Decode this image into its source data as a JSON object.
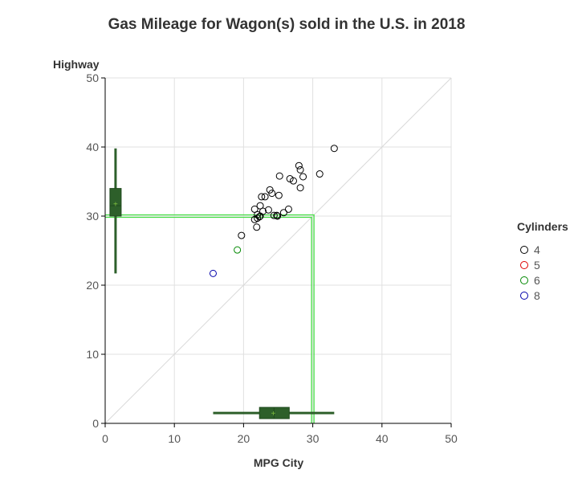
{
  "chart_data": {
    "type": "scatter",
    "title": "Gas Mileage for Wagon(s) sold in the U.S. in 2018",
    "xlabel": "MPG City",
    "ylabel": "Highway",
    "xlim": [
      0,
      50
    ],
    "ylim": [
      0,
      50
    ],
    "xticks": [
      0,
      10,
      20,
      30,
      40,
      50
    ],
    "yticks": [
      0,
      10,
      20,
      30,
      40,
      50
    ],
    "grid": true,
    "reference_line": {
      "from": [
        0,
        0
      ],
      "to": [
        50,
        50
      ],
      "color": "#d9d9d9"
    },
    "mean_lines": {
      "x": 30,
      "y": 30,
      "color": "#44dd44"
    },
    "legend": {
      "title": "Cylinders",
      "position": "right",
      "entries": [
        {
          "label": "4",
          "color": "#000000"
        },
        {
          "label": "5",
          "color": "#dd0000"
        },
        {
          "label": "6",
          "color": "#008800"
        },
        {
          "label": "8",
          "color": "#0000aa"
        }
      ]
    },
    "series": [
      {
        "name": "4",
        "color": "#000000",
        "points": [
          [
            33.1,
            39.8
          ],
          [
            31.0,
            36.1
          ],
          [
            28.0,
            37.3
          ],
          [
            28.2,
            36.7
          ],
          [
            28.6,
            35.7
          ],
          [
            25.2,
            35.8
          ],
          [
            26.7,
            35.4
          ],
          [
            27.2,
            35.1
          ],
          [
            28.2,
            34.1
          ],
          [
            23.8,
            33.8
          ],
          [
            24.1,
            33.3
          ],
          [
            25.1,
            33.0
          ],
          [
            22.6,
            32.8
          ],
          [
            23.1,
            32.8
          ],
          [
            22.4,
            31.5
          ],
          [
            21.6,
            31.0
          ],
          [
            22.8,
            30.7
          ],
          [
            23.6,
            30.9
          ],
          [
            26.5,
            31.0
          ],
          [
            25.8,
            30.5
          ],
          [
            22.0,
            30.2
          ],
          [
            22.4,
            30.0
          ],
          [
            22.3,
            29.9
          ],
          [
            24.4,
            30.1
          ],
          [
            24.8,
            30.1
          ],
          [
            24.9,
            30.0
          ],
          [
            21.6,
            29.5
          ],
          [
            22.0,
            29.7
          ],
          [
            21.9,
            28.4
          ],
          [
            19.7,
            27.2
          ]
        ]
      },
      {
        "name": "6",
        "color": "#008800",
        "points": [
          [
            19.1,
            25.1
          ]
        ]
      },
      {
        "name": "8",
        "color": "#0000aa",
        "points": [
          [
            15.6,
            21.7
          ]
        ]
      }
    ],
    "boxplot_x": {
      "min": 15.6,
      "q1": 22.3,
      "median": 24.4,
      "mean": 24.3,
      "q3": 26.6,
      "max": 33.1,
      "color": "#2d5f2a"
    },
    "boxplot_y": {
      "min": 21.7,
      "q1": 30.0,
      "median": 31.5,
      "mean": 31.8,
      "q3": 34.0,
      "max": 39.8,
      "color": "#2d5f2a"
    }
  }
}
